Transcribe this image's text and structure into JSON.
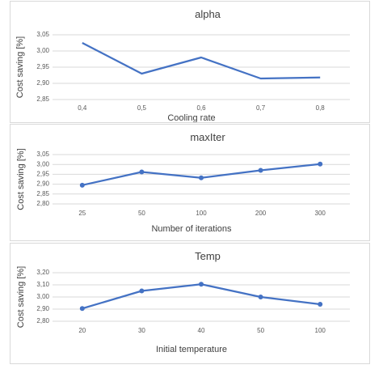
{
  "colors": {
    "series": "#4472c4",
    "grid": "#d9d9d9",
    "text": "#404040"
  },
  "chart_data": [
    {
      "type": "line",
      "title": "alpha",
      "xlabel": "Cooling rate",
      "ylabel": "Cost saving [%]",
      "categories": [
        "0,4",
        "0,5",
        "0,6",
        "0,7",
        "0,8"
      ],
      "values": [
        3.025,
        2.93,
        2.98,
        2.915,
        2.918
      ],
      "ylim": [
        2.85,
        3.05
      ],
      "yticks": [
        "2,85",
        "2,90",
        "2,95",
        "3,00",
        "3,05"
      ],
      "markers": false,
      "grid": true
    },
    {
      "type": "line",
      "title": "maxIter",
      "xlabel": "Number of iterations",
      "ylabel": "Cost saving [%]",
      "categories": [
        "25",
        "50",
        "100",
        "200",
        "300"
      ],
      "values": [
        2.895,
        2.962,
        2.932,
        2.97,
        3.002
      ],
      "ylim": [
        2.8,
        3.05
      ],
      "yticks": [
        "2,80",
        "2,85",
        "2,90",
        "2,95",
        "3,00",
        "3,05"
      ],
      "markers": true,
      "grid": true
    },
    {
      "type": "line",
      "title": "Temp",
      "xlabel": "Initial temperature",
      "ylabel": "Cost saving [%]",
      "categories": [
        "20",
        "30",
        "40",
        "50",
        "100"
      ],
      "values": [
        2.905,
        3.05,
        3.105,
        3.0,
        2.94
      ],
      "ylim": [
        2.8,
        3.2
      ],
      "yticks": [
        "2,80",
        "2,90",
        "3,00",
        "3,10",
        "3,20"
      ],
      "markers": true,
      "grid": true
    }
  ]
}
